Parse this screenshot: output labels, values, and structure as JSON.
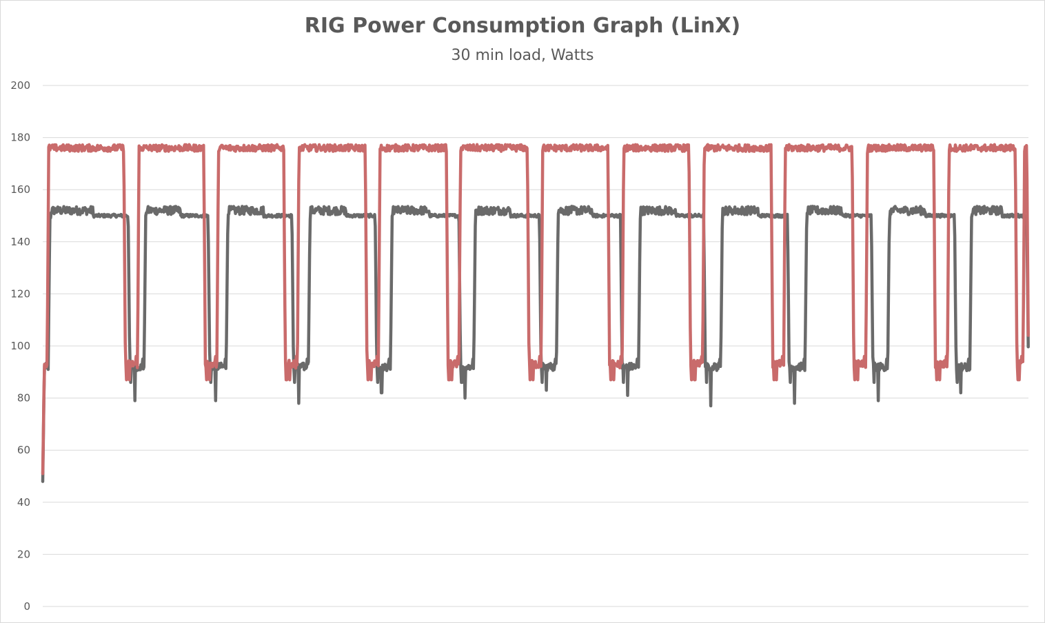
{
  "chart_data": {
    "type": "line",
    "title": "RIG Power Consumption Graph (LinX)",
    "subtitle": "30 min load, Watts",
    "xlabel": "",
    "ylabel": "",
    "ylim": [
      0,
      200
    ],
    "yticks": [
      0,
      20,
      40,
      60,
      80,
      100,
      120,
      140,
      160,
      180,
      200
    ],
    "grid": true,
    "legend": "none",
    "x_range": [
      0,
      1800
    ],
    "x_unit": "seconds",
    "series": [
      {
        "color": "#c96b6b",
        "baseline": 93,
        "plateau": 176,
        "startup_min": 51,
        "load_intervals": [
          [
            8,
            151
          ],
          [
            173,
            297
          ],
          [
            318,
            443
          ],
          [
            465,
            592
          ],
          [
            613,
            740
          ],
          [
            760,
            888
          ],
          [
            910,
            1035
          ],
          [
            1058,
            1183
          ],
          [
            1205,
            1333
          ],
          [
            1353,
            1481
          ],
          [
            1503,
            1630
          ],
          [
            1652,
            1779
          ],
          [
            1790,
            1800
          ]
        ]
      },
      {
        "color": "#6a6a6a",
        "baseline": 92,
        "plateau_high": 152,
        "plateau_low": 150,
        "startup_min": 48,
        "dips": [
          79,
          79,
          78,
          82,
          80,
          83,
          81,
          77,
          78,
          79,
          82
        ],
        "load_intervals": [
          [
            10,
            159
          ],
          [
            185,
            305
          ],
          [
            335,
            458
          ],
          [
            485,
            610
          ],
          [
            635,
            763
          ],
          [
            787,
            910
          ],
          [
            938,
            1058
          ],
          [
            1088,
            1210
          ],
          [
            1238,
            1363
          ],
          [
            1392,
            1516
          ],
          [
            1543,
            1668
          ],
          [
            1693,
            1800
          ]
        ]
      }
    ]
  }
}
